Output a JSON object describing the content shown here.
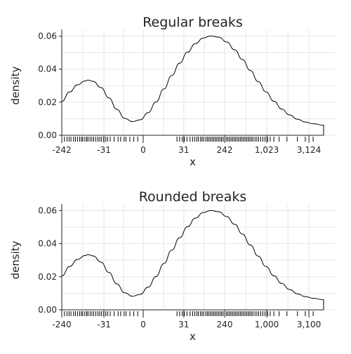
{
  "chart_data": [
    {
      "type": "area",
      "title": "Regular breaks",
      "xlabel": "x",
      "ylabel": "density",
      "y_ticks": [
        "0.00",
        "0.02",
        "0.04",
        "0.06"
      ],
      "y_tick_values": [
        0,
        0.02,
        0.04,
        0.06
      ],
      "ylim": [
        0,
        0.064
      ],
      "x_tick_labels": [
        "-242",
        "-31",
        "0",
        "31",
        "242",
        "1,023",
        "3,124"
      ],
      "grid": true,
      "fill": "#ffffff",
      "line_color": "#000000",
      "density": {
        "x_position_range": [
          0,
          1
        ],
        "x": [
          0,
          0.03,
          0.06,
          0.09,
          0.1,
          0.12,
          0.15,
          0.18,
          0.21,
          0.24,
          0.27,
          0.3,
          0.33,
          0.36,
          0.39,
          0.42,
          0.45,
          0.48,
          0.51,
          0.54,
          0.57,
          0.6,
          0.63,
          0.66,
          0.69,
          0.72,
          0.75,
          0.78,
          0.81,
          0.84,
          0.87,
          0.9,
          0.93,
          0.96,
          1
        ],
        "y": [
          0.0205,
          0.0262,
          0.0305,
          0.0329,
          0.0334,
          0.0326,
          0.0288,
          0.0226,
          0.0157,
          0.0103,
          0.0082,
          0.0094,
          0.0137,
          0.0202,
          0.028,
          0.0361,
          0.0436,
          0.0502,
          0.0554,
          0.0588,
          0.0601,
          0.0593,
          0.0564,
          0.0517,
          0.0458,
          0.0392,
          0.0325,
          0.0262,
          0.0206,
          0.0159,
          0.0123,
          0.0097,
          0.008,
          0.007,
          0.0061
        ]
      },
      "rug": [
        0.01,
        0.02,
        0.028,
        0.035,
        0.045,
        0.052,
        0.06,
        0.068,
        0.075,
        0.08,
        0.088,
        0.095,
        0.1,
        0.108,
        0.115,
        0.122,
        0.13,
        0.138,
        0.145,
        0.152,
        0.16,
        0.168,
        0.175,
        0.185,
        0.2,
        0.215,
        0.225,
        0.238,
        0.245,
        0.26,
        0.275,
        0.29,
        0.44,
        0.45,
        0.46,
        0.468,
        0.478,
        0.49,
        0.5,
        0.508,
        0.516,
        0.522,
        0.53,
        0.536,
        0.542,
        0.55,
        0.556,
        0.562,
        0.568,
        0.574,
        0.58,
        0.586,
        0.592,
        0.598,
        0.604,
        0.61,
        0.616,
        0.622,
        0.628,
        0.634,
        0.64,
        0.646,
        0.652,
        0.658,
        0.664,
        0.67,
        0.676,
        0.682,
        0.688,
        0.694,
        0.7,
        0.706,
        0.712,
        0.718,
        0.724,
        0.73,
        0.738,
        0.745,
        0.752,
        0.76,
        0.768,
        0.776,
        0.786,
        0.796,
        0.81,
        0.83,
        0.86,
        0.9,
        0.93,
        0.96
      ]
    },
    {
      "type": "area",
      "title": "Rounded breaks",
      "xlabel": "x",
      "ylabel": "density",
      "y_ticks": [
        "0.00",
        "0.02",
        "0.04",
        "0.06"
      ],
      "y_tick_values": [
        0,
        0.02,
        0.04,
        0.06
      ],
      "ylim": [
        0,
        0.064
      ],
      "x_tick_labels": [
        "-240",
        "-31",
        "0",
        "31",
        "240",
        "1,000",
        "3,100"
      ],
      "grid": true,
      "fill": "#ffffff",
      "line_color": "#000000",
      "density": {
        "x_position_range": [
          0,
          1
        ],
        "x": [
          0,
          0.03,
          0.06,
          0.09,
          0.1,
          0.12,
          0.15,
          0.18,
          0.21,
          0.24,
          0.27,
          0.3,
          0.33,
          0.36,
          0.39,
          0.42,
          0.45,
          0.48,
          0.51,
          0.54,
          0.57,
          0.6,
          0.63,
          0.66,
          0.69,
          0.72,
          0.75,
          0.78,
          0.81,
          0.84,
          0.87,
          0.9,
          0.93,
          0.96,
          1
        ],
        "y": [
          0.0205,
          0.0262,
          0.0305,
          0.0329,
          0.0334,
          0.0326,
          0.0288,
          0.0226,
          0.0157,
          0.0103,
          0.0082,
          0.0094,
          0.0137,
          0.0202,
          0.028,
          0.0361,
          0.0436,
          0.0502,
          0.0554,
          0.0588,
          0.0601,
          0.0593,
          0.0564,
          0.0517,
          0.0458,
          0.0392,
          0.0325,
          0.0262,
          0.0206,
          0.0159,
          0.0123,
          0.0097,
          0.008,
          0.007,
          0.0061
        ]
      },
      "rug": [
        0.01,
        0.02,
        0.028,
        0.035,
        0.045,
        0.052,
        0.06,
        0.068,
        0.075,
        0.08,
        0.088,
        0.095,
        0.1,
        0.108,
        0.115,
        0.122,
        0.13,
        0.138,
        0.145,
        0.152,
        0.16,
        0.168,
        0.175,
        0.185,
        0.2,
        0.215,
        0.225,
        0.238,
        0.245,
        0.26,
        0.275,
        0.29,
        0.44,
        0.45,
        0.46,
        0.468,
        0.478,
        0.49,
        0.5,
        0.508,
        0.516,
        0.522,
        0.53,
        0.536,
        0.542,
        0.55,
        0.556,
        0.562,
        0.568,
        0.574,
        0.58,
        0.586,
        0.592,
        0.598,
        0.604,
        0.61,
        0.616,
        0.622,
        0.628,
        0.634,
        0.64,
        0.646,
        0.652,
        0.658,
        0.664,
        0.67,
        0.676,
        0.682,
        0.688,
        0.694,
        0.7,
        0.706,
        0.712,
        0.718,
        0.724,
        0.73,
        0.738,
        0.745,
        0.752,
        0.76,
        0.768,
        0.776,
        0.786,
        0.796,
        0.81,
        0.83,
        0.86,
        0.9,
        0.93,
        0.96
      ]
    }
  ]
}
